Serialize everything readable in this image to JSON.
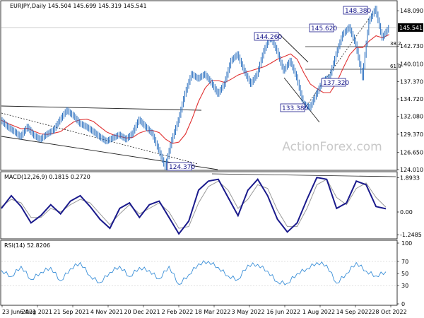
{
  "chart_data": {
    "type": "line",
    "header": "EURJPY,Daily  145.504 145.699 145.319 145.541",
    "watermark": "ActionForex.com",
    "x_ticks": [
      "23 Jun 2021",
      "6 Aug 2021",
      "21 Sep 2021",
      "4 Nov 2021",
      "20 Dec 2021",
      "2 Feb 2022",
      "18 Mar 2022",
      "3 May 2022",
      "16 Jun 2022",
      "1 Aug 2022",
      "14 Sep 2022",
      "28 Oct 2022"
    ],
    "price": {
      "y_ticks": [
        "148.090",
        "145.541",
        "142.730",
        "140.010",
        "137.370",
        "134.720",
        "132.080",
        "129.370",
        "126.650",
        "124.010"
      ],
      "y_tick_values": [
        148.09,
        145.541,
        142.73,
        140.01,
        137.37,
        134.72,
        132.08,
        129.37,
        126.65,
        124.01
      ],
      "ylim": [
        124.01,
        149.5
      ],
      "last_price": "145.541",
      "series_close_x": [
        0,
        10,
        20,
        30,
        40,
        50,
        60,
        70,
        80,
        90,
        100,
        110,
        120,
        130,
        140,
        150,
        160,
        170,
        180,
        190,
        200,
        210,
        220,
        230,
        240,
        250,
        260,
        270,
        280,
        290,
        300,
        310,
        320,
        330,
        340,
        350
      ],
      "series_close": [
        131.5,
        130.5,
        129.8,
        129.0,
        130.5,
        129.2,
        128.6,
        129.4,
        130.0,
        131.6,
        133.0,
        132.2,
        131.0,
        130.5,
        129.8,
        129.0,
        128.3,
        128.8,
        129.3,
        128.6,
        129.5,
        131.6,
        130.5,
        129.5,
        127.0,
        124.4,
        128.5,
        131.5,
        135.5,
        138.5,
        137.8,
        138.5,
        137.2,
        135.5,
        137.0,
        140.5
      ],
      "series_close2_x": [
        360,
        370,
        380,
        390,
        400,
        410,
        420,
        430,
        440,
        450,
        460,
        470,
        480,
        490,
        500,
        510,
        520,
        530,
        540,
        550,
        560,
        570,
        580,
        590
      ],
      "series_close2": [
        141.5,
        139.0,
        137.0,
        138.5,
        142.0,
        144.2,
        142.0,
        139.0,
        140.5,
        138.0,
        134.0,
        133.4,
        135.5,
        137.5,
        138.0,
        141.5,
        144.5,
        145.6,
        143.0,
        138.0,
        146.5,
        148.4,
        144.0,
        145.5
      ],
      "annotations": [
        "148.380",
        "145.620",
        "144.260",
        "137.320",
        "133.380",
        "124.370",
        "38.2",
        "61.8"
      ]
    },
    "macd": {
      "label": "MACD(12,26,9) 0.1815 0.2720",
      "y_ticks": [
        "1.8933",
        "0.00",
        "-1.2485"
      ],
      "ylim": [
        -1.4,
        2.1
      ],
      "x": [
        0,
        15,
        30,
        45,
        60,
        75,
        90,
        105,
        120,
        135,
        150,
        165,
        180,
        195,
        210,
        225,
        240,
        255,
        270,
        285,
        300,
        315,
        330,
        345,
        360,
        375,
        390,
        405,
        420,
        435,
        450,
        465,
        480,
        495,
        510,
        525,
        540,
        555,
        570,
        585
      ],
      "macd": [
        0.2,
        0.9,
        0.3,
        -0.6,
        -0.2,
        0.4,
        -0.1,
        0.6,
        0.9,
        0.3,
        -0.4,
        -0.9,
        0.2,
        0.5,
        -0.3,
        0.4,
        0.6,
        -0.3,
        -1.2,
        -0.5,
        1.2,
        1.7,
        1.8,
        0.8,
        -0.2,
        1.2,
        1.8,
        0.9,
        -0.4,
        -1.1,
        -0.6,
        0.7,
        1.9,
        1.8,
        0.2,
        0.5,
        1.7,
        1.5,
        0.3,
        0.18
      ],
      "signal": [
        0.3,
        0.7,
        0.5,
        -0.3,
        -0.3,
        0.2,
        0.0,
        0.4,
        0.7,
        0.5,
        -0.1,
        -0.7,
        -0.1,
        0.4,
        -0.1,
        0.2,
        0.5,
        0.0,
        -0.9,
        -0.8,
        0.5,
        1.4,
        1.7,
        1.2,
        0.2,
        0.7,
        1.5,
        1.3,
        0.1,
        -0.8,
        -0.8,
        0.2,
        1.5,
        1.8,
        0.8,
        0.4,
        1.3,
        1.6,
        0.8,
        0.27
      ]
    },
    "rsi": {
      "label": "RSI(14) 52.8206",
      "y_ticks": [
        "100",
        "70",
        "50",
        "30",
        "0"
      ],
      "ylim": [
        0,
        100
      ],
      "x": [
        0,
        15,
        30,
        45,
        60,
        75,
        90,
        105,
        120,
        135,
        150,
        165,
        180,
        195,
        210,
        225,
        240,
        255,
        270,
        285,
        300,
        315,
        330,
        345,
        360,
        375,
        390,
        405,
        420,
        435,
        450,
        465,
        480,
        495,
        510,
        525,
        540,
        555,
        570,
        585
      ],
      "values": [
        55,
        45,
        62,
        40,
        52,
        60,
        38,
        58,
        68,
        46,
        35,
        52,
        62,
        45,
        60,
        55,
        41,
        62,
        32,
        48,
        66,
        70,
        60,
        46,
        40,
        64,
        65,
        54,
        36,
        34,
        50,
        58,
        68,
        64,
        34,
        50,
        68,
        54,
        46,
        52.8
      ]
    }
  }
}
